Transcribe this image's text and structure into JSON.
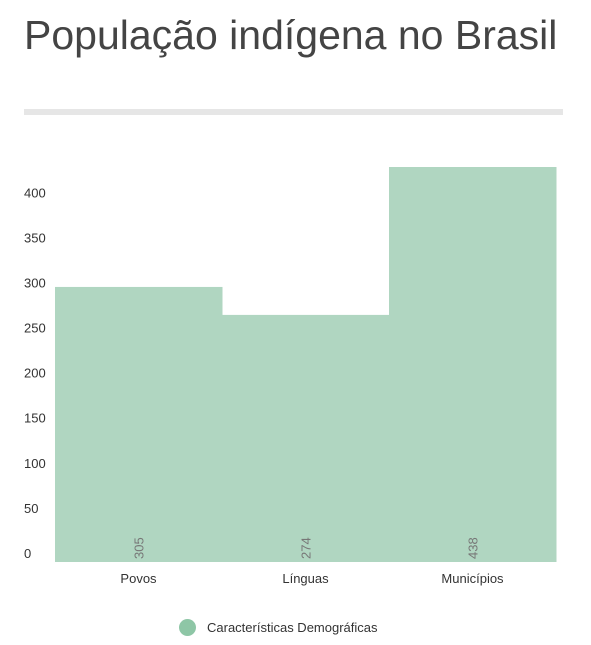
{
  "page": {
    "title": "População indígena no Brasil"
  },
  "colors": {
    "bar": "#b0d6c1",
    "legend_swatch": "#8ec6a6",
    "axis_text": "#333333",
    "value_text": "#777777"
  },
  "chart_data": {
    "type": "bar",
    "categories": [
      "Povos",
      "Línguas",
      "Municípios"
    ],
    "series": [
      {
        "name": "Características Demográficas",
        "values": [
          305,
          274,
          438
        ]
      }
    ],
    "ylim": [
      0,
      438
    ],
    "yticks": [
      0,
      50,
      100,
      150,
      200,
      250,
      300,
      350,
      400
    ],
    "grid": false,
    "legend": "bottom"
  }
}
